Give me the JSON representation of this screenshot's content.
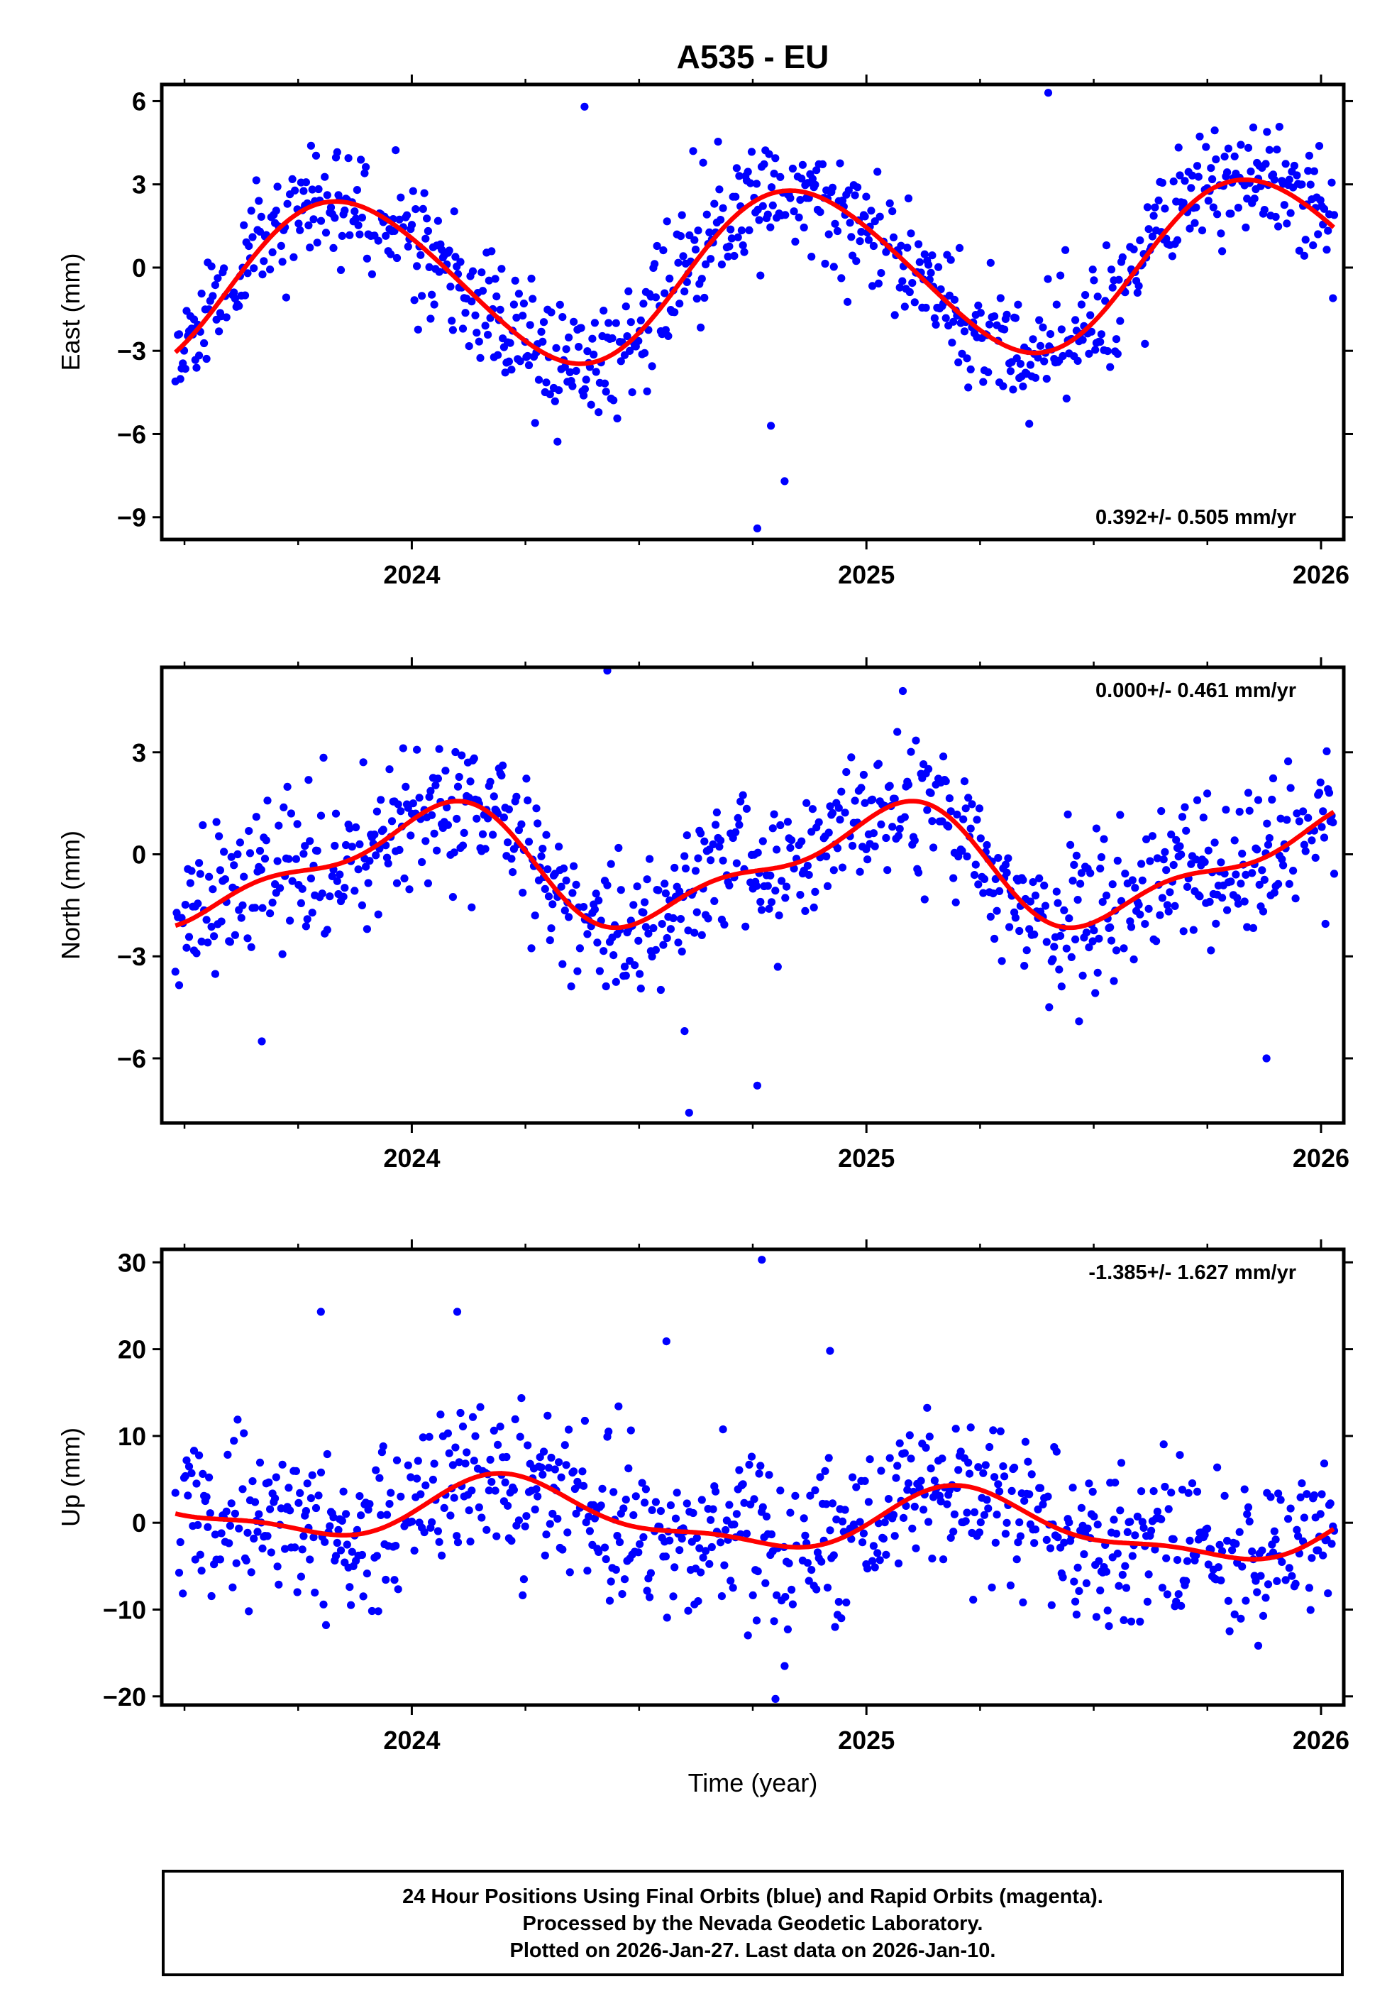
{
  "chart_data": {
    "type": "scatter",
    "title": "A535 - EU",
    "xlabel": "Time (year)",
    "x_range": [
      2023.45,
      2026.05
    ],
    "x_ticks": [
      2024,
      2025,
      2026
    ],
    "x_tick_labels": [
      "2024",
      "2025",
      "2026"
    ],
    "x_minor_ticks": [
      2023.5,
      2023.75,
      2024.25,
      2024.5,
      2024.75,
      2025.25,
      2025.5,
      2025.75
    ],
    "series_colors": {
      "final_orbits": "#0000ff",
      "rapid_orbits": "#ff00ff",
      "model_fit": "#ff0000"
    },
    "data_start": 2023.48,
    "data_end": 2026.03,
    "panels": [
      {
        "name": "east",
        "ylabel": "East (mm)",
        "ylim": [
          -9.8,
          6.6
        ],
        "y_ticks": [
          -9,
          -6,
          -3,
          0,
          3,
          6
        ],
        "y_tick_labels": [
          "−9",
          "−6",
          "−3",
          "0",
          "3",
          "6"
        ],
        "rate_text": "0.392+/- 0.505 mm/yr",
        "rate_position": "bottom-right",
        "fit": {
          "offset": -0.25,
          "rate": 0.392,
          "a1": -2.4,
          "b1": 1.8,
          "a2": 0.1,
          "b2": -0.2,
          "ref_year": 2024.75
        },
        "noise_sd": 1.1,
        "seed": 11,
        "outliers": [
          [
            2024.76,
            -9.4
          ],
          [
            2024.82,
            -7.7
          ],
          [
            2025.4,
            6.3
          ],
          [
            2024.38,
            5.8
          ],
          [
            2024.79,
            -5.7
          ]
        ]
      },
      {
        "name": "north",
        "ylabel": "North (mm)",
        "ylim": [
          -7.9,
          5.5
        ],
        "y_ticks": [
          -6,
          -3,
          0,
          3
        ],
        "y_tick_labels": [
          "−6",
          "−3",
          "0",
          "3"
        ],
        "rate_text": "0.000+/- 0.461 mm/yr",
        "rate_position": "top-right",
        "fit": {
          "offset": -0.35,
          "rate": 0.0,
          "a1": 0.3,
          "b1": 1.5,
          "a2": 0.6,
          "b2": -0.15,
          "ref_year": 2024.75
        },
        "noise_sd": 1.05,
        "seed": 23,
        "outliers": [
          [
            2024.61,
            -7.6
          ],
          [
            2024.43,
            5.4
          ],
          [
            2024.76,
            -6.8
          ],
          [
            2024.6,
            -5.2
          ],
          [
            2025.08,
            4.8
          ],
          [
            2025.88,
            -6.0
          ],
          [
            2023.67,
            -5.5
          ]
        ]
      },
      {
        "name": "up",
        "ylabel": "Up (mm)",
        "ylim": [
          -21,
          31.5
        ],
        "y_ticks": [
          -20,
          -10,
          0,
          10,
          20,
          30
        ],
        "y_tick_labels": [
          "−20",
          "−10",
          "0",
          "10",
          "20",
          "30"
        ],
        "rate_text": "-1.385+/- 1.627 mm/yr",
        "rate_position": "top-right",
        "fit": {
          "offset": 0.4,
          "rate": -1.385,
          "a1": 3.3,
          "b1": 0.5,
          "a2": 1.0,
          "b2": -0.8,
          "ref_year": 2024.75
        },
        "noise_sd": 4.4,
        "seed": 37,
        "outliers": [
          [
            2024.77,
            30.3
          ],
          [
            2024.8,
            -20.3
          ],
          [
            2023.8,
            24.3
          ],
          [
            2024.1,
            24.3
          ],
          [
            2024.56,
            20.9
          ],
          [
            2024.82,
            -16.5
          ],
          [
            2024.92,
            19.8
          ]
        ]
      }
    ]
  },
  "footer": {
    "line1": "24 Hour Positions Using Final Orbits (blue) and Rapid Orbits (magenta).",
    "line2": "Processed by the Nevada Geodetic Laboratory.",
    "line3": "Plotted on 2026-Jan-27. Last data on 2026-Jan-10."
  }
}
